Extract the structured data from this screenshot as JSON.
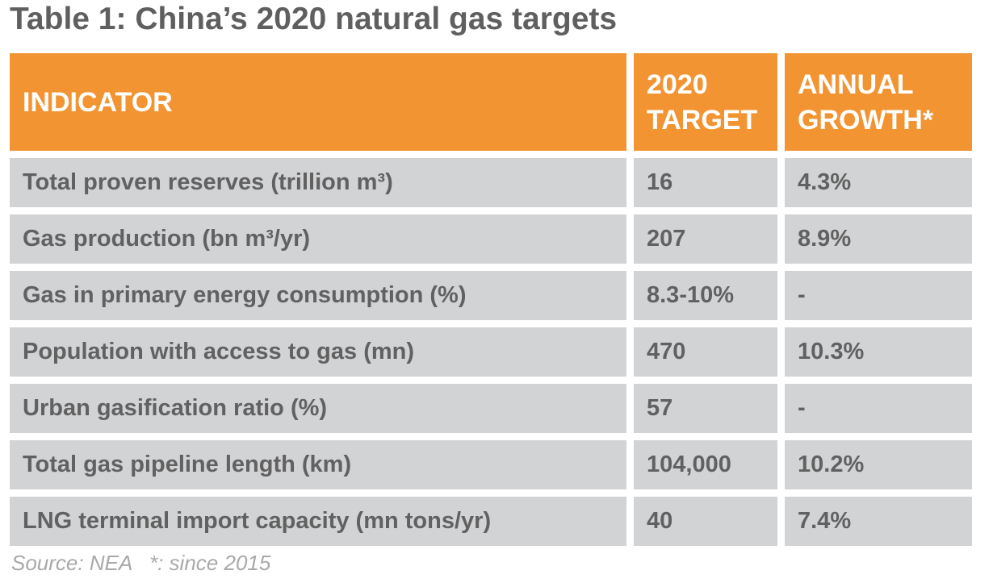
{
  "title": "Table 1: China’s 2020 natural gas targets",
  "colors": {
    "header": "#f39433",
    "row": "#d2d3d5",
    "text": "#616161"
  },
  "columns": [
    "INDICATOR",
    "2020\nTARGET",
    "ANNUAL\nGROWTH*"
  ],
  "rows": [
    [
      "Total proven reserves (trillion m³)",
      "16",
      "4.3%"
    ],
    [
      "Gas production (bn m³/yr)",
      "207",
      "8.9%"
    ],
    [
      "Gas in primary energy consumption (%)",
      "8.3-10%",
      "-"
    ],
    [
      "Population with access to gas (mn)",
      "470",
      "10.3%"
    ],
    [
      "Urban gasification ratio (%)",
      "57",
      "-"
    ],
    [
      "Total gas pipeline length (km)",
      "104,000",
      "10.2%"
    ],
    [
      "LNG terminal import capacity (mn tons/yr)",
      "40",
      "7.4%"
    ]
  ],
  "source": "Source: NEA   *: since 2015"
}
